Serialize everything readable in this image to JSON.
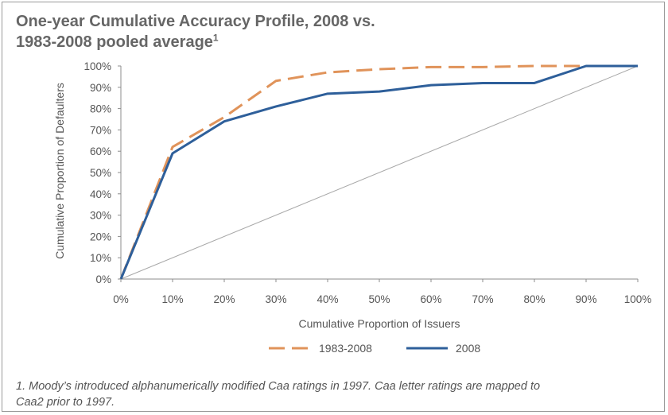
{
  "title": {
    "line1": "One-year Cumulative Accuracy Profile, 2008 vs.",
    "line2": "1983-2008 pooled average",
    "superscript": "1"
  },
  "footnote": {
    "line1": "1. Moody’s introduced alphanumerically modified Caa ratings in 1997. Caa letter ratings are mapped to",
    "line2": "Caa2 prior to 1997."
  },
  "chart_data": {
    "type": "line",
    "xlabel": "Cumulative Proportion of Issuers",
    "ylabel": "Cumulative Proportion of Defaulters",
    "xlim": [
      0,
      100
    ],
    "ylim": [
      0,
      100
    ],
    "x_ticks": [
      "0%",
      "10%",
      "20%",
      "30%",
      "40%",
      "50%",
      "60%",
      "70%",
      "80%",
      "90%",
      "100%"
    ],
    "y_ticks": [
      "0%",
      "10%",
      "20%",
      "30%",
      "40%",
      "50%",
      "60%",
      "70%",
      "80%",
      "90%",
      "100%"
    ],
    "grid": false,
    "legend_position": "bottom",
    "series": [
      {
        "name": "1983-2008",
        "color": "#e0935a",
        "style": "dashed",
        "x": [
          0,
          10,
          20,
          30,
          40,
          50,
          60,
          70,
          80,
          90,
          100
        ],
        "y": [
          0,
          62,
          76,
          93,
          97,
          98.5,
          99.5,
          99.5,
          100,
          100,
          100
        ]
      },
      {
        "name": "2008",
        "color": "#2e5f9a",
        "style": "solid",
        "x": [
          0,
          10,
          20,
          30,
          40,
          50,
          60,
          70,
          80,
          90,
          100
        ],
        "y": [
          0,
          59,
          74,
          81,
          87,
          88,
          91,
          92,
          92,
          100,
          100
        ]
      }
    ],
    "reference_line": {
      "color": "#a8a8a8",
      "x": [
        0,
        100
      ],
      "y": [
        0,
        100
      ]
    }
  }
}
